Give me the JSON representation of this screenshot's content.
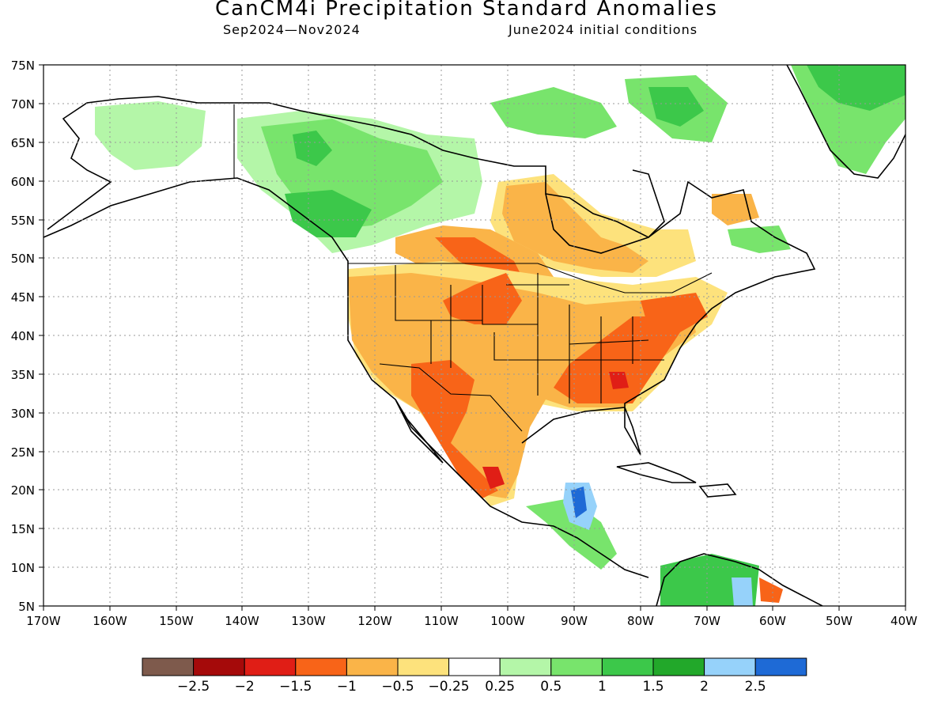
{
  "title": "CanCM4i Precipitation Standard Anomalies",
  "subtitle_left": "Sep2024—Nov2024",
  "subtitle_right": "June2024 initial conditions",
  "map": {
    "lat_labels": [
      "75N",
      "70N",
      "65N",
      "60N",
      "55N",
      "50N",
      "45N",
      "40N",
      "35N",
      "30N",
      "25N",
      "20N",
      "15N",
      "10N",
      "5N"
    ],
    "lon_labels": [
      "170W",
      "160W",
      "150W",
      "140W",
      "130W",
      "120W",
      "110W",
      "100W",
      "90W",
      "80W",
      "70W",
      "60W",
      "50W",
      "40W"
    ],
    "grid": "dotted"
  },
  "colorbar": {
    "colors": [
      "#7e5a4c",
      "#a50a0a",
      "#e01e16",
      "#f86418",
      "#fab448",
      "#fde27c",
      "#ffffff",
      "#b4f6a8",
      "#78e46c",
      "#3cc84a",
      "#22a82a",
      "#96d2fa",
      "#1e6ad6"
    ],
    "labels": [
      "−2.5",
      "−2",
      "−1.5",
      "−1",
      "−0.5",
      "−0.25",
      "0.25",
      "0.5",
      "1",
      "1.5",
      "2",
      "2.5"
    ]
  },
  "palette": {
    "land_outline": "#000000",
    "gridline": "#999999"
  }
}
